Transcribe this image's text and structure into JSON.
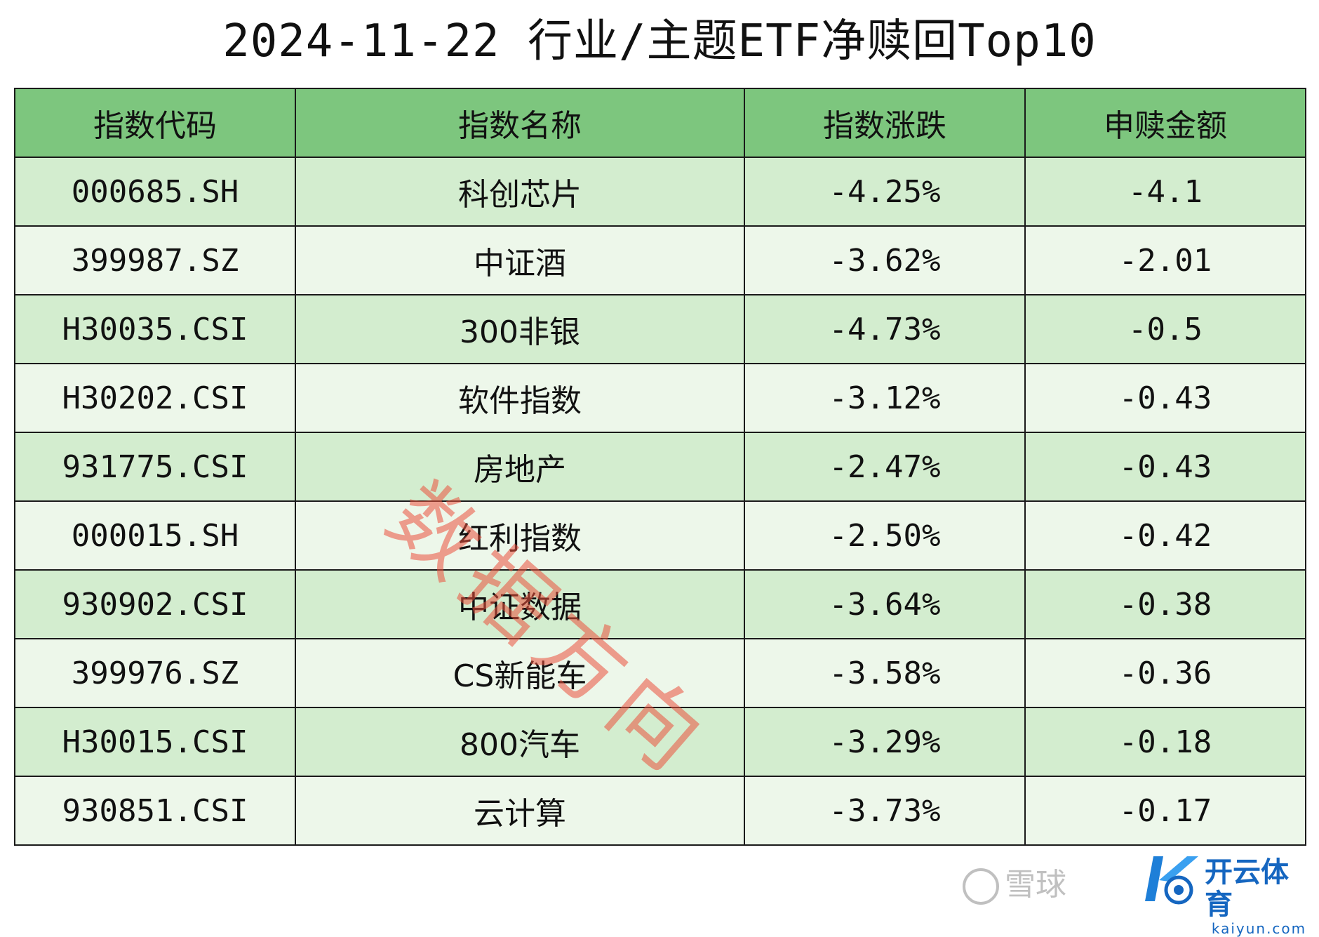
{
  "title": "2024-11-22 行业/主题ETF净赎回Top10",
  "table": {
    "headers": [
      "指数代码",
      "指数名称",
      "指数涨跌",
      "申赎金额"
    ],
    "rows": [
      [
        "000685.SH",
        "科创芯片",
        "-4.25%",
        "-4.1"
      ],
      [
        "399987.SZ",
        "中证酒",
        "-3.62%",
        "-2.01"
      ],
      [
        "H30035.CSI",
        "300非银",
        "-4.73%",
        "-0.5"
      ],
      [
        "H30202.CSI",
        "软件指数",
        "-3.12%",
        "-0.43"
      ],
      [
        "931775.CSI",
        "房地产",
        "-2.47%",
        "-0.43"
      ],
      [
        "000015.SH",
        "红利指数",
        "-2.50%",
        "-0.42"
      ],
      [
        "930902.CSI",
        "中证数据",
        "-3.64%",
        "-0.38"
      ],
      [
        "399976.SZ",
        "CS新能车",
        "-3.58%",
        "-0.36"
      ],
      [
        "H30015.CSI",
        "800汽车",
        "-3.29%",
        "-0.18"
      ],
      [
        "930851.CSI",
        "云计算",
        "-3.73%",
        "-0.17"
      ]
    ]
  },
  "watermark": "数据方向",
  "footer": {
    "xueqiu": "雪球",
    "brand_cn": "开云体育",
    "brand_en": "kaiyun.com"
  },
  "colors": {
    "header_bg": "#7dc67e",
    "row_odd_bg": "#d3edcf",
    "row_even_bg": "#edf7ea",
    "watermark": "#eb503c",
    "brand": "#1566c0"
  }
}
